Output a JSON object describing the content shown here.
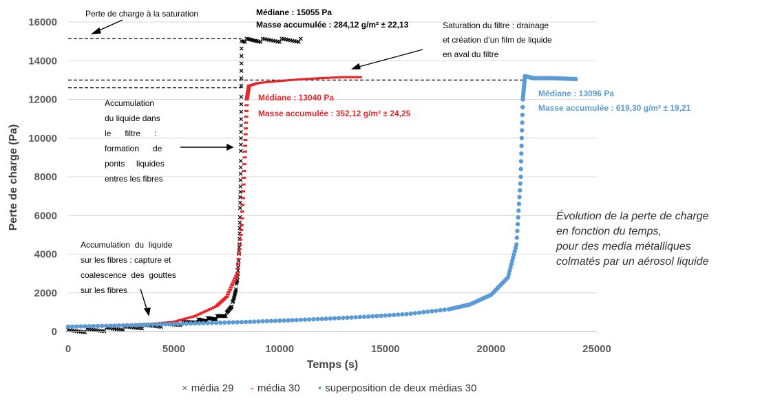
{
  "chart_data": {
    "type": "scatter",
    "xlabel": "Temps (s)",
    "ylabel": "Perte de charge (Pa)",
    "xlim": [
      0,
      25000
    ],
    "ylim": [
      0,
      16000
    ],
    "xticks": [
      "0",
      "5000",
      "10000",
      "15000",
      "20000",
      "25000"
    ],
    "yticks": [
      "0",
      "2000",
      "4000",
      "6000",
      "8000",
      "10000",
      "12000",
      "14000",
      "16000"
    ],
    "grid": "horizontal",
    "legend_position": "bottom",
    "series": [
      {
        "name": "média 29",
        "marker": "x",
        "color": "#000000",
        "points": [
          [
            0,
            0
          ],
          [
            1000,
            50
          ],
          [
            2000,
            120
          ],
          [
            3000,
            200
          ],
          [
            4000,
            290
          ],
          [
            5000,
            380
          ],
          [
            6000,
            520
          ],
          [
            6500,
            600
          ],
          [
            7000,
            700
          ],
          [
            7500,
            900
          ],
          [
            7800,
            1500
          ],
          [
            8000,
            2600
          ],
          [
            8100,
            4500
          ],
          [
            8150,
            7500
          ],
          [
            8180,
            11000
          ],
          [
            8200,
            15055
          ],
          [
            9000,
            15055
          ],
          [
            10000,
            15055
          ],
          [
            11000,
            15055
          ]
        ]
      },
      {
        "name": "média 30",
        "marker": "dash",
        "color": "#e8262a",
        "points": [
          [
            0,
            250
          ],
          [
            1000,
            280
          ],
          [
            2000,
            310
          ],
          [
            3000,
            340
          ],
          [
            4000,
            400
          ],
          [
            5000,
            500
          ],
          [
            6000,
            800
          ],
          [
            7000,
            1300
          ],
          [
            7500,
            1800
          ],
          [
            8000,
            3000
          ],
          [
            8200,
            5500
          ],
          [
            8350,
            9000
          ],
          [
            8450,
            12000
          ],
          [
            8550,
            12700
          ],
          [
            9000,
            12850
          ],
          [
            10000,
            12950
          ],
          [
            11000,
            13040
          ],
          [
            12000,
            13100
          ],
          [
            13000,
            13150
          ],
          [
            13800,
            13150
          ]
        ]
      },
      {
        "name": "superposition de deux médias 30",
        "marker": "dot",
        "color": "#5b9bd5",
        "points": [
          [
            0,
            250
          ],
          [
            2000,
            300
          ],
          [
            4000,
            360
          ],
          [
            6000,
            420
          ],
          [
            8000,
            480
          ],
          [
            10000,
            560
          ],
          [
            12000,
            650
          ],
          [
            14000,
            760
          ],
          [
            16000,
            900
          ],
          [
            18000,
            1150
          ],
          [
            19000,
            1400
          ],
          [
            20000,
            1900
          ],
          [
            20800,
            2800
          ],
          [
            21200,
            4500
          ],
          [
            21400,
            8000
          ],
          [
            21500,
            12000
          ],
          [
            21600,
            13200
          ],
          [
            22000,
            13100
          ],
          [
            23000,
            13096
          ],
          [
            24000,
            13050
          ]
        ]
      }
    ],
    "reference_lines": [
      15150,
      13000,
      12600
    ],
    "annotations": {
      "saturation_top": "Perte de charge à la saturation",
      "media29_median_line1": "Médiane : 15055 Pa",
      "media29_median_line2": "Masse accumulée : 284,12 g/m² ±  22,13",
      "saturation_filter": [
        "Saturation du filtre : drainage",
        "et création d’un film de liquide",
        "en aval du filtre"
      ],
      "media30_median_line1": "Médiane : 13040 Pa",
      "media30_median_line2": "Masse accumulée : 352,12 g/m² ± 24,25",
      "superposition_median_line1": "Médiane : 13096 Pa",
      "superposition_median_line2": "Masse accumulée : 619,30 g/m² ± 19,21",
      "accumulation_filter": [
        "Accumulation",
        "du liquide dans",
        "le      filtre      :",
        "formation      de",
        "ponts     liquides",
        "entres les fibres"
      ],
      "accumulation_fibers": [
        "Accumulation  du  liquide",
        "sur les fibres : capture et",
        "coalescence  des  gouttes",
        "sur les fibres"
      ]
    }
  },
  "caption": {
    "lines": [
      "Évolution de la perte de charge",
      "en fonction du temps,",
      "pour des media métalliques",
      "colmatés par un aérosol liquide"
    ]
  },
  "legend": {
    "items": [
      {
        "marker": "×",
        "label": "média 29",
        "color": "#555555"
      },
      {
        "marker": "-",
        "label": "média 30",
        "color": "#e8262a"
      },
      {
        "marker": "•",
        "label": "superposition de deux médias 30",
        "color": "#5b9bd5"
      }
    ]
  }
}
